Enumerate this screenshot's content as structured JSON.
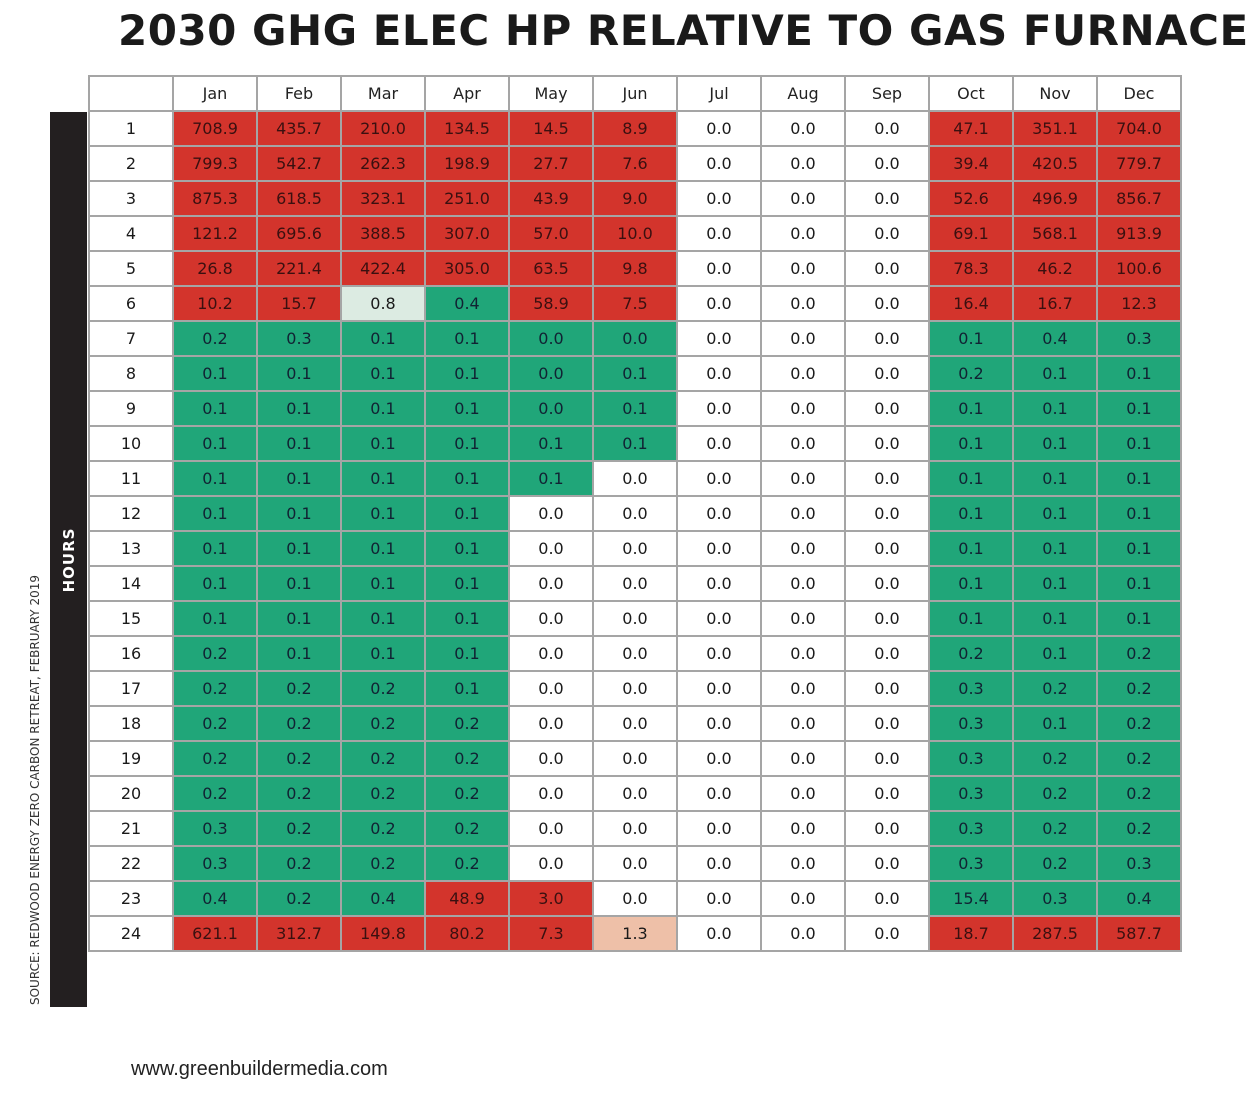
{
  "chart_data": {
    "type": "heatmap",
    "title": "2030 GHG ELEC HP RELATIVE TO GAS FURNACE",
    "ylabel": "HOURS",
    "source": "SOURCE: REDWOOD ENERGY ZERO CARBON RETREAT, FEBRUARY 2019",
    "footer": "www.greenbuildermedia.com",
    "columns": [
      "Jan",
      "Feb",
      "Mar",
      "Apr",
      "May",
      "Jun",
      "Jul",
      "Aug",
      "Sep",
      "Oct",
      "Nov",
      "Dec"
    ],
    "palette": {
      "R": "#d3342c",
      "G": "#20a679",
      "W": "#ffffff",
      "L": "#dcebe2",
      "S": "#eec0a8"
    },
    "rows": [
      {
        "hour": "1",
        "values": [
          "708.9",
          "435.7",
          "210.0",
          "134.5",
          "14.5",
          "8.9",
          "0.0",
          "0.0",
          "0.0",
          "47.1",
          "351.1",
          "704.0"
        ],
        "colors": "RRRRRRWWWRRR"
      },
      {
        "hour": "2",
        "values": [
          "799.3",
          "542.7",
          "262.3",
          "198.9",
          "27.7",
          "7.6",
          "0.0",
          "0.0",
          "0.0",
          "39.4",
          "420.5",
          "779.7"
        ],
        "colors": "RRRRRRWWWRRR"
      },
      {
        "hour": "3",
        "values": [
          "875.3",
          "618.5",
          "323.1",
          "251.0",
          "43.9",
          "9.0",
          "0.0",
          "0.0",
          "0.0",
          "52.6",
          "496.9",
          "856.7"
        ],
        "colors": "RRRRRRWWWRRR"
      },
      {
        "hour": "4",
        "values": [
          "121.2",
          "695.6",
          "388.5",
          "307.0",
          "57.0",
          "10.0",
          "0.0",
          "0.0",
          "0.0",
          "69.1",
          "568.1",
          "913.9"
        ],
        "colors": "RRRRRRWWWRRR"
      },
      {
        "hour": "5",
        "values": [
          "26.8",
          "221.4",
          "422.4",
          "305.0",
          "63.5",
          "9.8",
          "0.0",
          "0.0",
          "0.0",
          "78.3",
          "46.2",
          "100.6"
        ],
        "colors": "RRRRRRWWWRRR"
      },
      {
        "hour": "6",
        "values": [
          "10.2",
          "15.7",
          "0.8",
          "0.4",
          "58.9",
          "7.5",
          "0.0",
          "0.0",
          "0.0",
          "16.4",
          "16.7",
          "12.3"
        ],
        "colors": "RRLGRRWWWRRR"
      },
      {
        "hour": "7",
        "values": [
          "0.2",
          "0.3",
          "0.1",
          "0.1",
          "0.0",
          "0.0",
          "0.0",
          "0.0",
          "0.0",
          "0.1",
          "0.4",
          "0.3"
        ],
        "colors": "GGGGGGWWWGGG"
      },
      {
        "hour": "8",
        "values": [
          "0.1",
          "0.1",
          "0.1",
          "0.1",
          "0.0",
          "0.1",
          "0.0",
          "0.0",
          "0.0",
          "0.2",
          "0.1",
          "0.1"
        ],
        "colors": "GGGGGGWWWGGG"
      },
      {
        "hour": "9",
        "values": [
          "0.1",
          "0.1",
          "0.1",
          "0.1",
          "0.0",
          "0.1",
          "0.0",
          "0.0",
          "0.0",
          "0.1",
          "0.1",
          "0.1"
        ],
        "colors": "GGGGGGWWWGGG"
      },
      {
        "hour": "10",
        "values": [
          "0.1",
          "0.1",
          "0.1",
          "0.1",
          "0.1",
          "0.1",
          "0.0",
          "0.0",
          "0.0",
          "0.1",
          "0.1",
          "0.1"
        ],
        "colors": "GGGGGGWWWGGG"
      },
      {
        "hour": "11",
        "values": [
          "0.1",
          "0.1",
          "0.1",
          "0.1",
          "0.1",
          "0.0",
          "0.0",
          "0.0",
          "0.0",
          "0.1",
          "0.1",
          "0.1"
        ],
        "colors": "GGGGGWWWWGGG"
      },
      {
        "hour": "12",
        "values": [
          "0.1",
          "0.1",
          "0.1",
          "0.1",
          "0.0",
          "0.0",
          "0.0",
          "0.0",
          "0.0",
          "0.1",
          "0.1",
          "0.1"
        ],
        "colors": "GGGGWWWWWGGG"
      },
      {
        "hour": "13",
        "values": [
          "0.1",
          "0.1",
          "0.1",
          "0.1",
          "0.0",
          "0.0",
          "0.0",
          "0.0",
          "0.0",
          "0.1",
          "0.1",
          "0.1"
        ],
        "colors": "GGGGWWWWWGGG"
      },
      {
        "hour": "14",
        "values": [
          "0.1",
          "0.1",
          "0.1",
          "0.1",
          "0.0",
          "0.0",
          "0.0",
          "0.0",
          "0.0",
          "0.1",
          "0.1",
          "0.1"
        ],
        "colors": "GGGGWWWWWGGG"
      },
      {
        "hour": "15",
        "values": [
          "0.1",
          "0.1",
          "0.1",
          "0.1",
          "0.0",
          "0.0",
          "0.0",
          "0.0",
          "0.0",
          "0.1",
          "0.1",
          "0.1"
        ],
        "colors": "GGGGWWWWWGGG"
      },
      {
        "hour": "16",
        "values": [
          "0.2",
          "0.1",
          "0.1",
          "0.1",
          "0.0",
          "0.0",
          "0.0",
          "0.0",
          "0.0",
          "0.2",
          "0.1",
          "0.2"
        ],
        "colors": "GGGGWWWWWGGG"
      },
      {
        "hour": "17",
        "values": [
          "0.2",
          "0.2",
          "0.2",
          "0.1",
          "0.0",
          "0.0",
          "0.0",
          "0.0",
          "0.0",
          "0.3",
          "0.2",
          "0.2"
        ],
        "colors": "GGGGWWWWWGGG"
      },
      {
        "hour": "18",
        "values": [
          "0.2",
          "0.2",
          "0.2",
          "0.2",
          "0.0",
          "0.0",
          "0.0",
          "0.0",
          "0.0",
          "0.3",
          "0.1",
          "0.2"
        ],
        "colors": "GGGGWWWWWGGG"
      },
      {
        "hour": "19",
        "values": [
          "0.2",
          "0.2",
          "0.2",
          "0.2",
          "0.0",
          "0.0",
          "0.0",
          "0.0",
          "0.0",
          "0.3",
          "0.2",
          "0.2"
        ],
        "colors": "GGGGWWWWWGGG"
      },
      {
        "hour": "20",
        "values": [
          "0.2",
          "0.2",
          "0.2",
          "0.2",
          "0.0",
          "0.0",
          "0.0",
          "0.0",
          "0.0",
          "0.3",
          "0.2",
          "0.2"
        ],
        "colors": "GGGGWWWWWGGG"
      },
      {
        "hour": "21",
        "values": [
          "0.3",
          "0.2",
          "0.2",
          "0.2",
          "0.0",
          "0.0",
          "0.0",
          "0.0",
          "0.0",
          "0.3",
          "0.2",
          "0.2"
        ],
        "colors": "GGGGWWWWWGGG"
      },
      {
        "hour": "22",
        "values": [
          "0.3",
          "0.2",
          "0.2",
          "0.2",
          "0.0",
          "0.0",
          "0.0",
          "0.0",
          "0.0",
          "0.3",
          "0.2",
          "0.3"
        ],
        "colors": "GGGGWWWWWGGG"
      },
      {
        "hour": "23",
        "values": [
          "0.4",
          "0.2",
          "0.4",
          "48.9",
          "3.0",
          "0.0",
          "0.0",
          "0.0",
          "0.0",
          "15.4",
          "0.3",
          "0.4"
        ],
        "colors": "GGGRRWWWWGGG"
      },
      {
        "hour": "24",
        "values": [
          "621.1",
          "312.7",
          "149.8",
          "80.2",
          "7.3",
          "1.3",
          "0.0",
          "0.0",
          "0.0",
          "18.7",
          "287.5",
          "587.7"
        ],
        "colors": "RRRRRSWWWRRR"
      }
    ]
  }
}
